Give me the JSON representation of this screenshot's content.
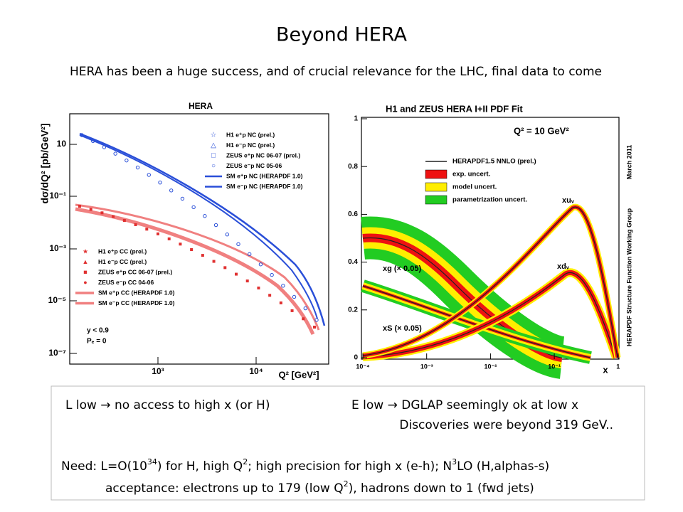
{
  "title": "Beyond HERA",
  "subtitle": "HERA has been a huge success, and of crucial relevance for the LHC, final data to come",
  "left_plot": {
    "title": "HERA",
    "y_label": "dσ/dQ² [pb/GeV²]",
    "x_label": "Q² [GeV²]",
    "y_tick_labels": [
      "10",
      "10⁻¹",
      "10⁻³",
      "10⁻⁵",
      "10⁻⁷"
    ],
    "x_tick_labels": [
      "10³",
      "10⁴"
    ],
    "nc_legend": [
      "H1 e⁺p NC (prel.)",
      "H1 e⁻p NC (prel.)",
      "ZEUS e⁺p NC 06-07 (prel.)",
      "ZEUS e⁻p NC 05-06",
      "SM e⁺p NC (HERAPDF 1.0)",
      "SM e⁻p NC (HERAPDF 1.0)"
    ],
    "cc_legend": [
      "H1 e⁺p CC (prel.)",
      "H1 e⁻p CC (prel.)",
      "ZEUS e⁺p CC 06-07 (prel.)",
      "ZEUS e⁻p CC 04-06",
      "SM e⁺p CC (HERAPDF 1.0)",
      "SM e⁻p CC (HERAPDF 1.0)"
    ],
    "notes": [
      "y < 0.9",
      "Pₑ = 0"
    ]
  },
  "right_plot": {
    "title": "H1 and ZEUS HERA I+II PDF Fit",
    "scale_label": "Q² = 10 GeV²",
    "legend": [
      "HERAPDF1.5 NNLO (prel.)",
      "exp. uncert.",
      "model uncert.",
      "parametrization uncert."
    ],
    "curve_labels": [
      "xuᵥ",
      "xdᵥ",
      "xg (× 0.05)",
      "xS (× 0.05)"
    ],
    "side_labels": [
      "March 2011",
      "HERAPDF Structure Function Working Group"
    ],
    "y_tick_labels": [
      "0",
      "0.2",
      "0.4",
      "0.6",
      "0.8",
      "1"
    ],
    "x_tick_labels": [
      "10⁻⁴",
      "10⁻³",
      "10⁻²",
      "10⁻¹",
      "1"
    ],
    "x_label": "x"
  },
  "notes": {
    "line1_left": "L low → no access to high x (or H)",
    "line1_right": "E low → DGLAP seemingly ok at low x",
    "line2": "Discoveries were beyond 319 GeV..",
    "line3": [
      "Need: L=O(10",
      "34",
      ") for H, high Q",
      "2",
      ";  high precision for high x (e-h); N",
      "3",
      "LO  (H,alphas-s)"
    ],
    "line4": [
      "acceptance: electrons up to 179 (low Q",
      "2",
      "), hadrons down to 1 (fwd jets)"
    ]
  }
}
